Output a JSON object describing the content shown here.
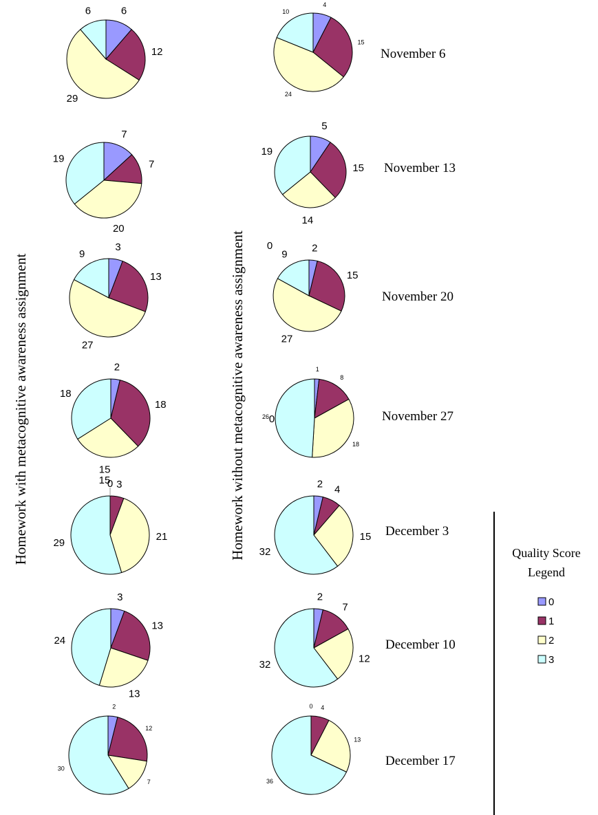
{
  "colors": {
    "0": "#9999ff",
    "1": "#993366",
    "2": "#ffffcc",
    "3": "#ccffff",
    "stroke": "#000000"
  },
  "left_title": "Homework with metacognitive awareness assignment",
  "right_title": "Homework without  metacognitive awareness assignment",
  "legend": {
    "title_line1": "Quality Score",
    "title_line2": "Legend",
    "items": [
      "0",
      "1",
      "2",
      "3"
    ]
  },
  "chart_data": {
    "type": "pie",
    "categories": [
      "0",
      "1",
      "2",
      "3"
    ],
    "rows": [
      {
        "date": "November 6",
        "with": {
          "values": [
            6,
            12,
            29,
            6
          ],
          "labels": [
            "6",
            "12",
            "29",
            "6"
          ]
        },
        "without": {
          "values": [
            4,
            15,
            24,
            10
          ],
          "labels": [
            "4",
            "15",
            "24",
            "10"
          ]
        }
      },
      {
        "date": "November 13",
        "with": {
          "values": [
            7,
            7,
            20,
            19
          ],
          "labels": [
            "7",
            "7",
            "20",
            "19"
          ]
        },
        "without": {
          "values": [
            5,
            15,
            14,
            19
          ],
          "labels": [
            "5",
            "15",
            "14",
            "19"
          ]
        }
      },
      {
        "date": "November 20",
        "with": {
          "values": [
            3,
            13,
            27,
            9
          ],
          "labels": [
            "3",
            "13",
            "27",
            "9"
          ]
        },
        "without": {
          "values": [
            2,
            15,
            27,
            9
          ],
          "labels": [
            "2",
            "15",
            "27",
            "9"
          ],
          "extra_label": "0"
        }
      },
      {
        "date": "November 27",
        "with": {
          "values": [
            2,
            18,
            15,
            18
          ],
          "labels": [
            "2",
            "18",
            "15",
            "18"
          ]
        },
        "without": {
          "values": [
            1,
            8,
            18,
            26
          ],
          "labels": [
            "1",
            "8",
            "18",
            "26"
          ],
          "extra_label": "0"
        }
      },
      {
        "date": "December 3",
        "with": {
          "values": [
            0,
            3,
            21,
            29
          ],
          "labels": [
            "0",
            "3",
            "21",
            "29"
          ],
          "top_label": "15"
        },
        "without": {
          "values": [
            2,
            4,
            15,
            32
          ],
          "labels": [
            "2",
            "4",
            "15",
            "32"
          ]
        }
      },
      {
        "date": "December 10",
        "with": {
          "values": [
            3,
            13,
            13,
            24
          ],
          "labels": [
            "3",
            "13",
            "13",
            "24"
          ]
        },
        "without": {
          "values": [
            2,
            7,
            12,
            32
          ],
          "labels": [
            "2",
            "7",
            "12",
            "32"
          ]
        }
      },
      {
        "date": "December 17",
        "with": {
          "values": [
            2,
            12,
            7,
            30
          ],
          "labels": [
            "2",
            "12",
            "7",
            "30"
          ]
        },
        "without": {
          "values": [
            0,
            4,
            13,
            36
          ],
          "labels": [
            "0",
            "4",
            "13",
            "36"
          ]
        }
      }
    ]
  }
}
